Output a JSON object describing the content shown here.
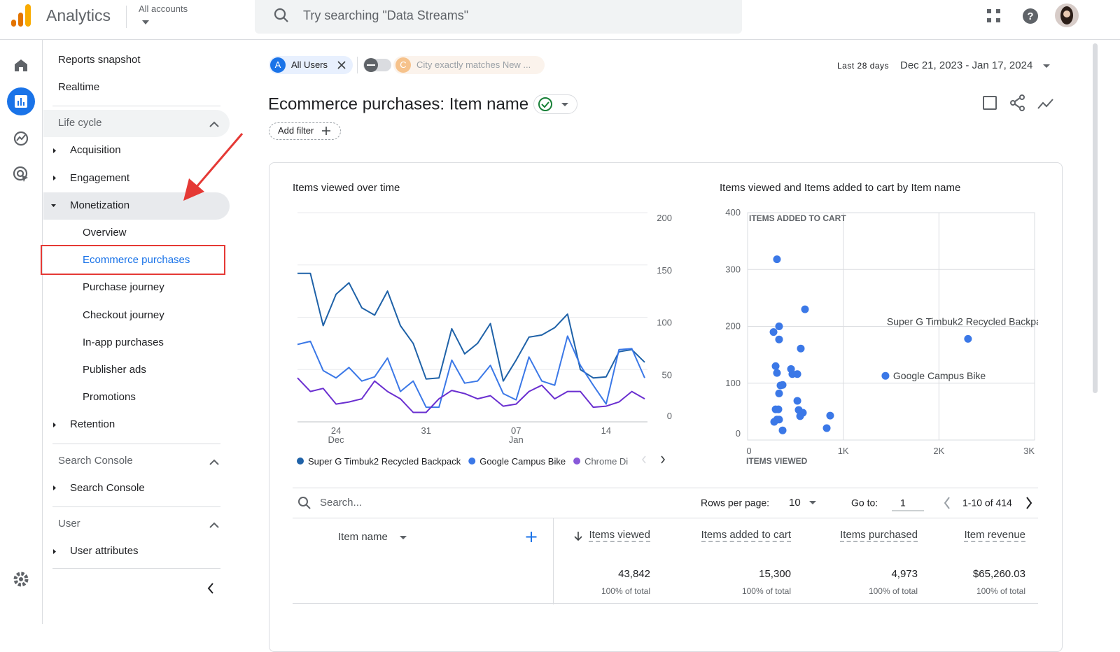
{
  "topbar": {
    "product": "Analytics",
    "account": "All accounts",
    "search_placeholder": "Try searching \"Data Streams\""
  },
  "nav": {
    "top": [
      "Reports snapshot",
      "Realtime"
    ],
    "sections": [
      {
        "title": "Life cycle",
        "items": [
          {
            "label": "Acquisition"
          },
          {
            "label": "Engagement"
          },
          {
            "label": "Monetization",
            "children": [
              "Overview",
              "Ecommerce purchases",
              "Purchase journey",
              "Checkout journey",
              "In-app purchases",
              "Publisher ads",
              "Promotions"
            ]
          },
          {
            "label": "Retention"
          }
        ]
      },
      {
        "title": "Search Console",
        "items": [
          {
            "label": "Search Console"
          }
        ]
      },
      {
        "title": "User",
        "items": [
          {
            "label": "User attributes"
          }
        ]
      }
    ]
  },
  "filters": {
    "segments": [
      {
        "badge": "A",
        "label": "All Users"
      },
      {
        "badge": "C",
        "label": "City exactly matches New ..."
      }
    ],
    "date_range_label": "Last 28 days",
    "date_range": "Dec 21, 2023 - Jan 17, 2024"
  },
  "report": {
    "title": "Ecommerce purchases: Item name",
    "add_filter": "Add filter"
  },
  "chart_data": [
    {
      "type": "line",
      "title": "Items viewed over time",
      "categories": [
        null,
        null,
        null,
        "24 Dec",
        null,
        null,
        null,
        null,
        null,
        null,
        "31",
        null,
        null,
        null,
        null,
        null,
        null,
        "07 Jan",
        null,
        null,
        null,
        null,
        null,
        null,
        "14",
        null,
        null,
        null
      ],
      "ylim": [
        0,
        200
      ],
      "yticks": [
        0,
        50,
        100,
        150,
        200
      ],
      "y_axis_side": "right",
      "grid": true,
      "series": [
        {
          "name": "Super G Timbuk2 Recycled Backpack",
          "color": "#1f62a8",
          "values": [
            142,
            142,
            92,
            122,
            133,
            109,
            102,
            125,
            92,
            75,
            41,
            42,
            89,
            65,
            75,
            94,
            39,
            59,
            81,
            83,
            90,
            103,
            50,
            42,
            43,
            67,
            69,
            57
          ]
        },
        {
          "name": "Google Campus Bike",
          "color": "#3b78e7",
          "values": [
            74,
            77,
            49,
            42,
            52,
            39,
            43,
            61,
            29,
            39,
            14,
            14,
            59,
            37,
            39,
            54,
            27,
            21,
            62,
            39,
            35,
            82,
            54,
            35,
            17,
            69,
            70,
            42
          ]
        },
        {
          "name": "Chrome Di",
          "color": "#6a2fd0",
          "values": [
            42,
            29,
            32,
            17,
            19,
            22,
            39,
            29,
            22,
            9,
            9,
            22,
            30,
            27,
            22,
            25,
            15,
            17,
            29,
            35,
            22,
            29,
            29,
            14,
            15,
            19,
            29,
            22
          ]
        }
      ]
    },
    {
      "type": "scatter",
      "title": "Items viewed and Items added to cart by Item name",
      "x_label": "ITEMS VIEWED",
      "y_label": "ITEMS ADDED TO CART",
      "xlim": [
        0,
        3000
      ],
      "xticks": [
        0,
        {
          "value": 1000,
          "label": "1K"
        },
        {
          "value": 2000,
          "label": "2K"
        },
        {
          "value": 3000,
          "label": "3K"
        }
      ],
      "ylim": [
        0,
        400
      ],
      "yticks": [
        0,
        100,
        200,
        300,
        400
      ],
      "grid": true,
      "color": "#3b78e7",
      "x": [
        307,
        600,
        329,
        271,
        329,
        556,
        293,
        454,
        307,
        468,
        520,
        366,
        344,
        329,
        520,
        293,
        322,
        534,
        578,
        863,
        549,
        307,
        278,
        329,
        366,
        827,
        1441,
        2304
      ],
      "values": [
        318,
        230,
        200,
        190,
        177,
        161,
        130,
        125,
        118,
        116,
        116,
        97,
        96,
        82,
        69,
        54,
        54,
        53,
        48,
        43,
        42,
        36,
        32,
        36,
        17,
        21,
        113,
        178
      ],
      "point_labels": [
        null,
        null,
        null,
        null,
        null,
        null,
        null,
        null,
        null,
        null,
        null,
        null,
        null,
        null,
        null,
        null,
        null,
        null,
        null,
        null,
        null,
        null,
        null,
        null,
        null,
        null,
        "Google Campus Bike",
        "Super G Timbuk2 Recycled Backpa"
      ]
    }
  ],
  "table": {
    "search_placeholder": "Search...",
    "rows_per_page_label": "Rows per page:",
    "rows_per_page": "10",
    "goto_label": "Go to:",
    "goto": "1",
    "range": "1-10 of 414",
    "headers": [
      "Item name",
      "Items viewed",
      "Items added to cart",
      "Items purchased",
      "Item revenue"
    ],
    "totals": [
      "43,842",
      "15,300",
      "4,973",
      "$65,260.03"
    ],
    "totals_note": [
      "100% of total",
      "100% of total",
      "100% of total",
      "100% of total"
    ]
  }
}
